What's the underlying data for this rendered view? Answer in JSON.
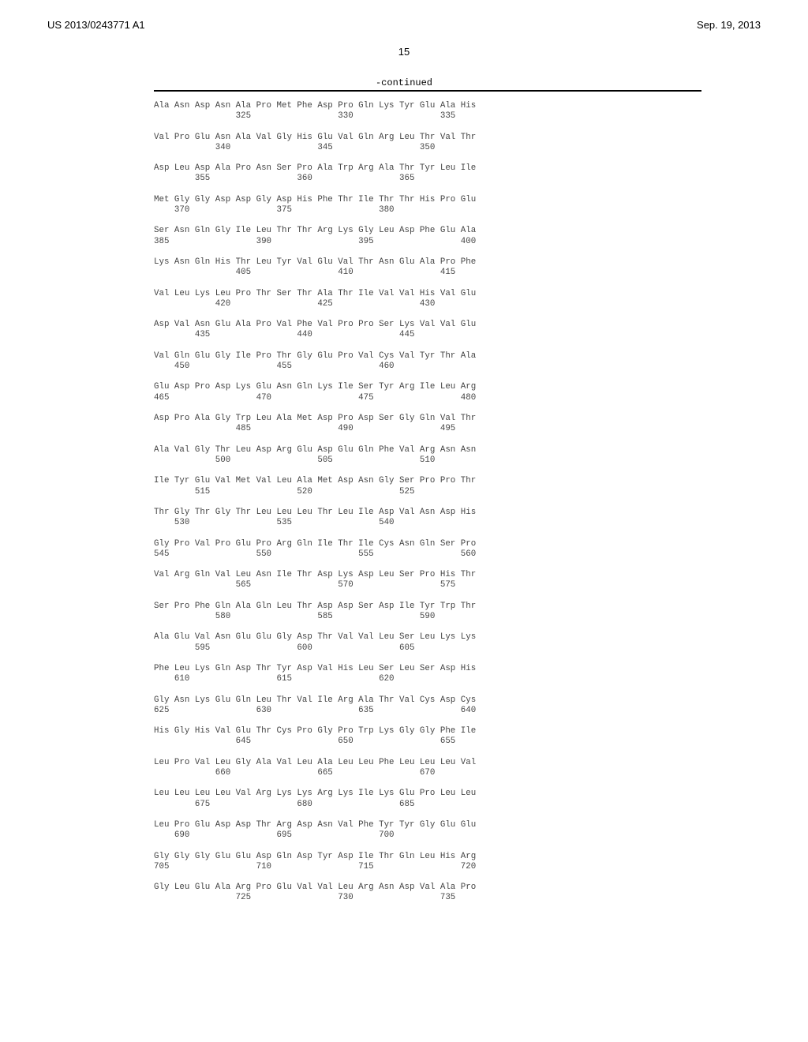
{
  "header": {
    "pub_no": "US 2013/0243771 A1",
    "date": "Sep. 19, 2013",
    "page": "15",
    "continued": "-continued"
  },
  "seq_start": 321,
  "rows": [
    [
      "Ala",
      "Asn",
      "Asp",
      "Asn",
      "Ala",
      "Pro",
      "Met",
      "Phe",
      "Asp",
      "Pro",
      "Gln",
      "Lys",
      "Tyr",
      "Glu",
      "Ala",
      "His"
    ],
    [
      "Val",
      "Pro",
      "Glu",
      "Asn",
      "Ala",
      "Val",
      "Gly",
      "His",
      "Glu",
      "Val",
      "Gln",
      "Arg",
      "Leu",
      "Thr",
      "Val",
      "Thr"
    ],
    [
      "Asp",
      "Leu",
      "Asp",
      "Ala",
      "Pro",
      "Asn",
      "Ser",
      "Pro",
      "Ala",
      "Trp",
      "Arg",
      "Ala",
      "Thr",
      "Tyr",
      "Leu",
      "Ile"
    ],
    [
      "Met",
      "Gly",
      "Gly",
      "Asp",
      "Asp",
      "Gly",
      "Asp",
      "His",
      "Phe",
      "Thr",
      "Ile",
      "Thr",
      "Thr",
      "His",
      "Pro",
      "Glu"
    ],
    [
      "Ser",
      "Asn",
      "Gln",
      "Gly",
      "Ile",
      "Leu",
      "Thr",
      "Thr",
      "Arg",
      "Lys",
      "Gly",
      "Leu",
      "Asp",
      "Phe",
      "Glu",
      "Ala"
    ],
    [
      "Lys",
      "Asn",
      "Gln",
      "His",
      "Thr",
      "Leu",
      "Tyr",
      "Val",
      "Glu",
      "Val",
      "Thr",
      "Asn",
      "Glu",
      "Ala",
      "Pro",
      "Phe"
    ],
    [
      "Val",
      "Leu",
      "Lys",
      "Leu",
      "Pro",
      "Thr",
      "Ser",
      "Thr",
      "Ala",
      "Thr",
      "Ile",
      "Val",
      "Val",
      "His",
      "Val",
      "Glu"
    ],
    [
      "Asp",
      "Val",
      "Asn",
      "Glu",
      "Ala",
      "Pro",
      "Val",
      "Phe",
      "Val",
      "Pro",
      "Pro",
      "Ser",
      "Lys",
      "Val",
      "Val",
      "Glu"
    ],
    [
      "Val",
      "Gln",
      "Glu",
      "Gly",
      "Ile",
      "Pro",
      "Thr",
      "Gly",
      "Glu",
      "Pro",
      "Val",
      "Cys",
      "Val",
      "Tyr",
      "Thr",
      "Ala"
    ],
    [
      "Glu",
      "Asp",
      "Pro",
      "Asp",
      "Lys",
      "Glu",
      "Asn",
      "Gln",
      "Lys",
      "Ile",
      "Ser",
      "Tyr",
      "Arg",
      "Ile",
      "Leu",
      "Arg"
    ],
    [
      "Asp",
      "Pro",
      "Ala",
      "Gly",
      "Trp",
      "Leu",
      "Ala",
      "Met",
      "Asp",
      "Pro",
      "Asp",
      "Ser",
      "Gly",
      "Gln",
      "Val",
      "Thr"
    ],
    [
      "Ala",
      "Val",
      "Gly",
      "Thr",
      "Leu",
      "Asp",
      "Arg",
      "Glu",
      "Asp",
      "Glu",
      "Gln",
      "Phe",
      "Val",
      "Arg",
      "Asn",
      "Asn"
    ],
    [
      "Ile",
      "Tyr",
      "Glu",
      "Val",
      "Met",
      "Val",
      "Leu",
      "Ala",
      "Met",
      "Asp",
      "Asn",
      "Gly",
      "Ser",
      "Pro",
      "Pro",
      "Thr"
    ],
    [
      "Thr",
      "Gly",
      "Thr",
      "Gly",
      "Thr",
      "Leu",
      "Leu",
      "Leu",
      "Thr",
      "Leu",
      "Ile",
      "Asp",
      "Val",
      "Asn",
      "Asp",
      "His"
    ],
    [
      "Gly",
      "Pro",
      "Val",
      "Pro",
      "Glu",
      "Pro",
      "Arg",
      "Gln",
      "Ile",
      "Thr",
      "Ile",
      "Cys",
      "Asn",
      "Gln",
      "Ser",
      "Pro"
    ],
    [
      "Val",
      "Arg",
      "Gln",
      "Val",
      "Leu",
      "Asn",
      "Ile",
      "Thr",
      "Asp",
      "Lys",
      "Asp",
      "Leu",
      "Ser",
      "Pro",
      "His",
      "Thr"
    ],
    [
      "Ser",
      "Pro",
      "Phe",
      "Gln",
      "Ala",
      "Gln",
      "Leu",
      "Thr",
      "Asp",
      "Asp",
      "Ser",
      "Asp",
      "Ile",
      "Tyr",
      "Trp",
      "Thr"
    ],
    [
      "Ala",
      "Glu",
      "Val",
      "Asn",
      "Glu",
      "Glu",
      "Gly",
      "Asp",
      "Thr",
      "Val",
      "Val",
      "Leu",
      "Ser",
      "Leu",
      "Lys",
      "Lys"
    ],
    [
      "Phe",
      "Leu",
      "Lys",
      "Gln",
      "Asp",
      "Thr",
      "Tyr",
      "Asp",
      "Val",
      "His",
      "Leu",
      "Ser",
      "Leu",
      "Ser",
      "Asp",
      "His"
    ],
    [
      "Gly",
      "Asn",
      "Lys",
      "Glu",
      "Gln",
      "Leu",
      "Thr",
      "Val",
      "Ile",
      "Arg",
      "Ala",
      "Thr",
      "Val",
      "Cys",
      "Asp",
      "Cys"
    ],
    [
      "His",
      "Gly",
      "His",
      "Val",
      "Glu",
      "Thr",
      "Cys",
      "Pro",
      "Gly",
      "Pro",
      "Trp",
      "Lys",
      "Gly",
      "Gly",
      "Phe",
      "Ile"
    ],
    [
      "Leu",
      "Pro",
      "Val",
      "Leu",
      "Gly",
      "Ala",
      "Val",
      "Leu",
      "Ala",
      "Leu",
      "Leu",
      "Phe",
      "Leu",
      "Leu",
      "Leu",
      "Val"
    ],
    [
      "Leu",
      "Leu",
      "Leu",
      "Leu",
      "Val",
      "Arg",
      "Lys",
      "Lys",
      "Arg",
      "Lys",
      "Ile",
      "Lys",
      "Glu",
      "Pro",
      "Leu",
      "Leu"
    ],
    [
      "Leu",
      "Pro",
      "Glu",
      "Asp",
      "Asp",
      "Thr",
      "Arg",
      "Asp",
      "Asn",
      "Val",
      "Phe",
      "Tyr",
      "Tyr",
      "Gly",
      "Glu",
      "Glu"
    ],
    [
      "Gly",
      "Gly",
      "Gly",
      "Glu",
      "Glu",
      "Asp",
      "Gln",
      "Asp",
      "Tyr",
      "Asp",
      "Ile",
      "Thr",
      "Gln",
      "Leu",
      "His",
      "Arg"
    ],
    [
      "Gly",
      "Leu",
      "Glu",
      "Ala",
      "Arg",
      "Pro",
      "Glu",
      "Val",
      "Val",
      "Leu",
      "Arg",
      "Asn",
      "Asp",
      "Val",
      "Ala",
      "Pro"
    ]
  ]
}
